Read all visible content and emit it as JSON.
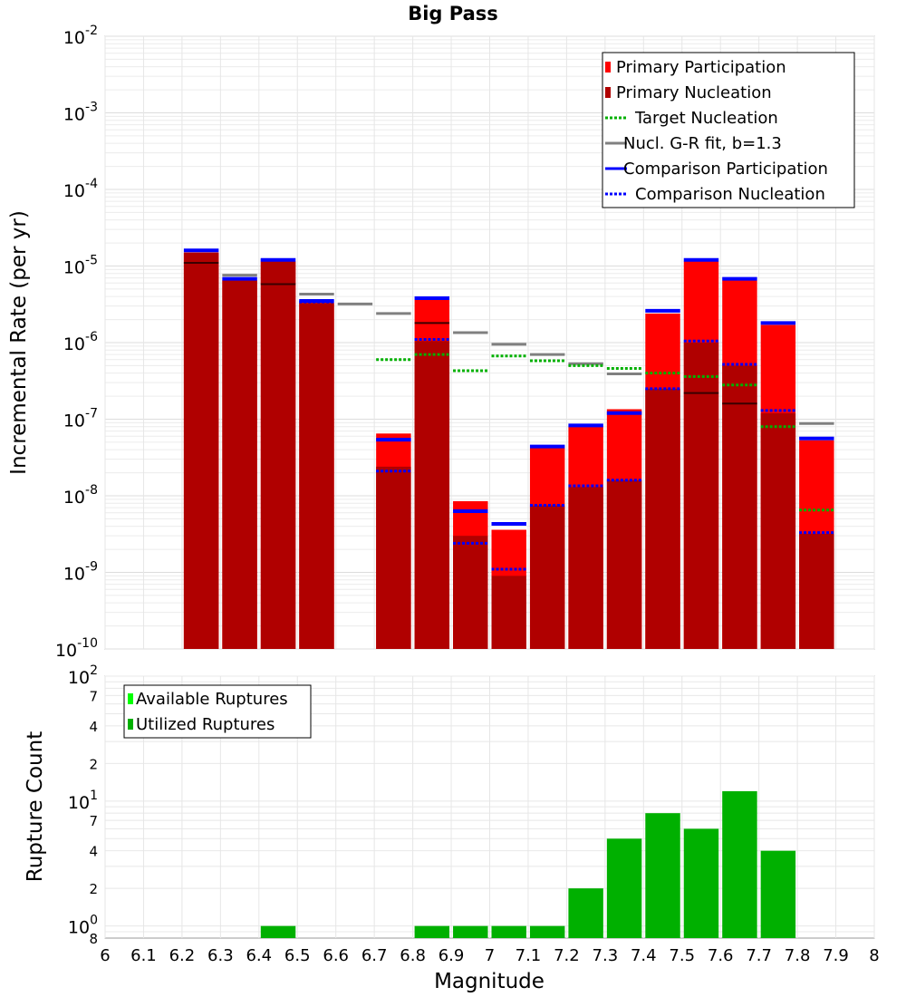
{
  "chart_data": [
    {
      "type": "bar",
      "title": "Big Pass",
      "xlabel": "",
      "ylabel": "Incremental Rate (per yr)",
      "y_scale": "log",
      "ylim": [
        1e-10,
        0.01
      ],
      "xlim": [
        6.0,
        8.0
      ],
      "grid": true,
      "legend_position": "top-right",
      "y_ticks": [
        {
          "base": "10",
          "exp": "-2",
          "value": 0.01
        },
        {
          "base": "10",
          "exp": "-3",
          "value": 0.001
        },
        {
          "base": "10",
          "exp": "-4",
          "value": 0.0001
        },
        {
          "base": "10",
          "exp": "-5",
          "value": 1e-05
        },
        {
          "base": "10",
          "exp": "-6",
          "value": 1e-06
        },
        {
          "base": "10",
          "exp": "-7",
          "value": 1e-07
        },
        {
          "base": "10",
          "exp": "-8",
          "value": 1e-08
        },
        {
          "base": "10",
          "exp": "-9",
          "value": 1e-09
        },
        {
          "base": "10",
          "exp": "-10",
          "value": 1e-10
        }
      ],
      "legend": [
        {
          "label": "Primary Participation",
          "color": "#ff0000",
          "style": "bar"
        },
        {
          "label": "Primary Nucleation",
          "color": "#b00000",
          "style": "bar"
        },
        {
          "label": "Target Nucleation",
          "color": "#00b000",
          "style": "dotted"
        },
        {
          "label": "Nucl. G-R fit, b=1.3",
          "color": "#808080",
          "style": "solid"
        },
        {
          "label": "Comparison Participation",
          "color": "#0000ff",
          "style": "solid"
        },
        {
          "label": "Comparison Nucleation",
          "color": "#0000ff",
          "style": "dotted"
        }
      ],
      "bin_width": 0.1,
      "x": [
        6.25,
        6.35,
        6.45,
        6.55,
        6.65,
        6.75,
        6.85,
        6.95,
        7.05,
        7.15,
        7.25,
        7.35,
        7.45,
        7.55,
        7.65,
        7.75,
        7.85
      ],
      "series": [
        {
          "name": "Primary Participation",
          "color": "#ff0000",
          "values": [
            1.5e-05,
            6.5e-06,
            1.15e-05,
            3.3e-06,
            null,
            6.5e-08,
            3.6e-06,
            8.5e-09,
            3.6e-09,
            4.2e-08,
            8e-08,
            1.35e-07,
            2.4e-06,
            1.15e-05,
            6.5e-06,
            1.7e-06,
            5.3e-08
          ]
        },
        {
          "name": "Primary Nucleation",
          "color": "#b00000",
          "values": [
            1.5e-05,
            6.5e-06,
            1.15e-05,
            3.3e-06,
            null,
            2.4e-08,
            1.05e-06,
            3e-09,
            9e-10,
            7.5e-09,
            1.3e-08,
            1.6e-08,
            2.5e-07,
            1e-06,
            5e-07,
            1.2e-07,
            3.2e-09
          ]
        },
        {
          "name": "Primary Nucleation marker",
          "color": "#3a0000",
          "values": [
            1.1e-05,
            null,
            5.8e-06,
            null,
            null,
            null,
            1.8e-06,
            null,
            null,
            null,
            null,
            null,
            null,
            2.2e-07,
            1.6e-07,
            null,
            null
          ]
        },
        {
          "name": "Target Nucleation",
          "color": "#00b000",
          "values": [
            null,
            null,
            null,
            null,
            null,
            6e-07,
            7e-07,
            4.3e-07,
            6.7e-07,
            5.8e-07,
            5e-07,
            4.6e-07,
            4e-07,
            3.6e-07,
            2.8e-07,
            8e-08,
            6.5e-09
          ]
        },
        {
          "name": "Nucl. G-R fit, b=1.3",
          "color": "#808080",
          "values": [
            null,
            7.6e-06,
            null,
            4.3e-06,
            3.2e-06,
            2.4e-06,
            null,
            1.35e-06,
            9.5e-07,
            7e-07,
            5.3e-07,
            3.9e-07,
            null,
            null,
            null,
            null,
            8.8e-08
          ]
        },
        {
          "name": "Comparison Participation",
          "color": "#0000ff",
          "values": [
            1.6e-05,
            6.8e-06,
            1.2e-05,
            3.5e-06,
            null,
            5.4e-08,
            3.8e-06,
            6.3e-09,
            4.3e-09,
            4.4e-08,
            8.3e-08,
            1.2e-07,
            2.6e-06,
            1.2e-05,
            6.8e-06,
            1.8e-06,
            5.6e-08
          ]
        },
        {
          "name": "Comparison Nucleation",
          "color": "#0000ff",
          "values": [
            null,
            null,
            1.2e-05,
            3.4e-06,
            null,
            2.1e-08,
            1.1e-06,
            2.4e-09,
            1.1e-09,
            7.5e-09,
            1.35e-08,
            1.6e-08,
            2.5e-07,
            1.05e-06,
            5.2e-07,
            1.3e-07,
            3.3e-09
          ]
        }
      ]
    },
    {
      "type": "bar",
      "title": "",
      "xlabel": "Magnitude",
      "ylabel": "Rupture Count",
      "y_scale": "log",
      "ylim": [
        0.8,
        100
      ],
      "xlim": [
        6.0,
        8.0
      ],
      "grid": true,
      "legend_position": "top-left",
      "major_ticks": [
        {
          "base": "10",
          "exp": "2",
          "value": 100
        },
        {
          "base": "10",
          "exp": "1",
          "value": 10
        },
        {
          "base": "10",
          "exp": "0",
          "value": 1
        }
      ],
      "minor_ticks": [
        {
          "label": "7",
          "value": 70
        },
        {
          "label": "4",
          "value": 40
        },
        {
          "label": "2",
          "value": 20
        },
        {
          "label": "7",
          "value": 7
        },
        {
          "label": "4",
          "value": 4
        },
        {
          "label": "2",
          "value": 2
        },
        {
          "label": "8",
          "value": 0.8
        }
      ],
      "x_ticks": [
        "6",
        "6.1",
        "6.2",
        "6.3",
        "6.4",
        "6.5",
        "6.6",
        "6.7",
        "6.8",
        "6.9",
        "7",
        "7.1",
        "7.2",
        "7.3",
        "7.4",
        "7.5",
        "7.6",
        "7.7",
        "7.8",
        "7.9",
        "8"
      ],
      "legend": [
        {
          "label": "Available Ruptures",
          "color": "#00ff00",
          "style": "bar"
        },
        {
          "label": "Utilized Ruptures",
          "color": "#00b000",
          "style": "bar"
        }
      ],
      "bin_width": 0.1,
      "x": [
        6.45,
        6.85,
        6.95,
        7.05,
        7.15,
        7.25,
        7.35,
        7.45,
        7.55,
        7.65,
        7.75
      ],
      "series": [
        {
          "name": "Utilized Ruptures",
          "color": "#00b000",
          "values": [
            1,
            1,
            1,
            1,
            1,
            2,
            5,
            8,
            6,
            12,
            4
          ]
        }
      ]
    }
  ]
}
